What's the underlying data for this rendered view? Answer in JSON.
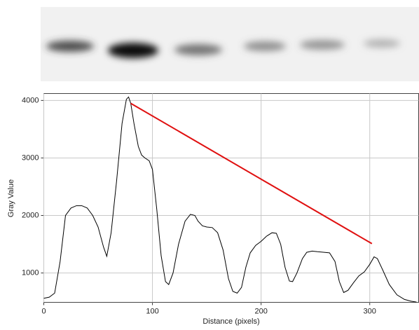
{
  "chart_data": {
    "type": "line",
    "x_label": "Distance (pixels)",
    "y_label": "Gray Value",
    "x": [
      0,
      5,
      10,
      15,
      20,
      25,
      30,
      35,
      40,
      45,
      50,
      55,
      58,
      62,
      67,
      72,
      76,
      78,
      80,
      83,
      87,
      90,
      93,
      97,
      100,
      104,
      108,
      112,
      115,
      119,
      124,
      130,
      135,
      139,
      142,
      146,
      150,
      155,
      160,
      165,
      170,
      174,
      178,
      182,
      186,
      190,
      195,
      200,
      205,
      210,
      214,
      218,
      222,
      226,
      229,
      233,
      238,
      242,
      247,
      252,
      258,
      263,
      268,
      272,
      276,
      280,
      285,
      290,
      295,
      300,
      304,
      307,
      312,
      318,
      325,
      332,
      338,
      343
    ],
    "values": [
      560,
      580,
      650,
      1200,
      2000,
      2130,
      2170,
      2170,
      2130,
      2000,
      1800,
      1450,
      1290,
      1700,
      2600,
      3600,
      4020,
      4060,
      3950,
      3600,
      3200,
      3050,
      3000,
      2950,
      2800,
      2100,
      1300,
      850,
      800,
      1000,
      1500,
      1900,
      2020,
      2000,
      1900,
      1820,
      1800,
      1790,
      1700,
      1400,
      900,
      680,
      650,
      750,
      1100,
      1350,
      1480,
      1550,
      1640,
      1700,
      1690,
      1500,
      1100,
      860,
      850,
      1000,
      1250,
      1360,
      1380,
      1370,
      1360,
      1350,
      1200,
      850,
      660,
      700,
      830,
      950,
      1020,
      1150,
      1280,
      1250,
      1050,
      800,
      620,
      540,
      510,
      495
    ],
    "color": "#000000",
    "annotation_line": {
      "x": [
        80,
        302
      ],
      "values": [
        3950,
        1510
      ],
      "color": "#e01010"
    },
    "xlim": [
      0,
      345
    ],
    "ylim": [
      490,
      4120
    ],
    "xticks": [
      0,
      100,
      200,
      300
    ],
    "yticks": [
      1000,
      2000,
      3000,
      4000
    ],
    "grid": true
  }
}
